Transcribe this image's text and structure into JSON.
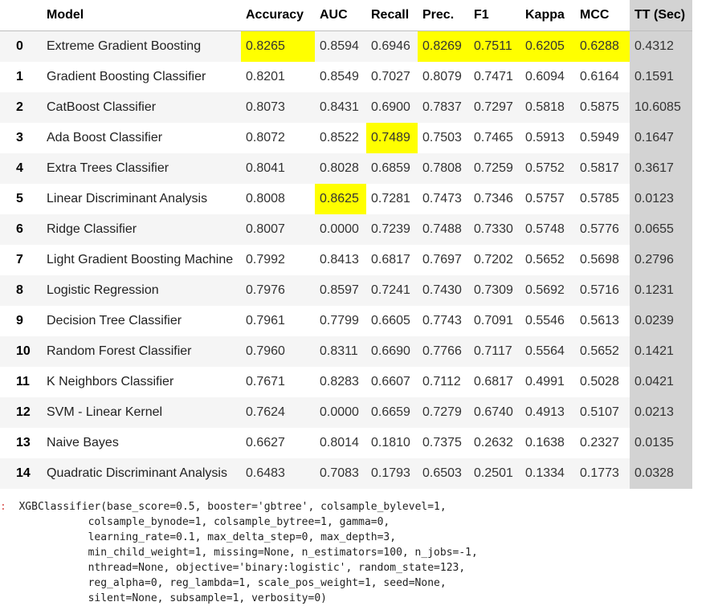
{
  "table": {
    "headers": [
      "",
      "Model",
      "Accuracy",
      "AUC",
      "Recall",
      "Prec.",
      "F1",
      "Kappa",
      "MCC",
      "TT (Sec)"
    ],
    "rows": [
      {
        "idx": "0",
        "model": "Extreme Gradient Boosting",
        "vals": [
          "0.8265",
          "0.8594",
          "0.6946",
          "0.8269",
          "0.7511",
          "0.6205",
          "0.6288",
          "0.4312"
        ],
        "highlight": [
          0,
          3,
          4,
          5,
          6
        ]
      },
      {
        "idx": "1",
        "model": "Gradient Boosting Classifier",
        "vals": [
          "0.8201",
          "0.8549",
          "0.7027",
          "0.8079",
          "0.7471",
          "0.6094",
          "0.6164",
          "0.1591"
        ],
        "highlight": []
      },
      {
        "idx": "2",
        "model": "CatBoost Classifier",
        "vals": [
          "0.8073",
          "0.8431",
          "0.6900",
          "0.7837",
          "0.7297",
          "0.5818",
          "0.5875",
          "10.6085"
        ],
        "highlight": []
      },
      {
        "idx": "3",
        "model": "Ada Boost Classifier",
        "vals": [
          "0.8072",
          "0.8522",
          "0.7489",
          "0.7503",
          "0.7465",
          "0.5913",
          "0.5949",
          "0.1647"
        ],
        "highlight": [
          2
        ]
      },
      {
        "idx": "4",
        "model": "Extra Trees Classifier",
        "vals": [
          "0.8041",
          "0.8028",
          "0.6859",
          "0.7808",
          "0.7259",
          "0.5752",
          "0.5817",
          "0.3617"
        ],
        "highlight": []
      },
      {
        "idx": "5",
        "model": "Linear Discriminant Analysis",
        "vals": [
          "0.8008",
          "0.8625",
          "0.7281",
          "0.7473",
          "0.7346",
          "0.5757",
          "0.5785",
          "0.0123"
        ],
        "highlight": [
          1
        ]
      },
      {
        "idx": "6",
        "model": "Ridge Classifier",
        "vals": [
          "0.8007",
          "0.0000",
          "0.7239",
          "0.7488",
          "0.7330",
          "0.5748",
          "0.5776",
          "0.0655"
        ],
        "highlight": []
      },
      {
        "idx": "7",
        "model": "Light Gradient Boosting Machine",
        "vals": [
          "0.7992",
          "0.8413",
          "0.6817",
          "0.7697",
          "0.7202",
          "0.5652",
          "0.5698",
          "0.2796"
        ],
        "highlight": []
      },
      {
        "idx": "8",
        "model": "Logistic Regression",
        "vals": [
          "0.7976",
          "0.8597",
          "0.7241",
          "0.7430",
          "0.7309",
          "0.5692",
          "0.5716",
          "0.1231"
        ],
        "highlight": []
      },
      {
        "idx": "9",
        "model": "Decision Tree Classifier",
        "vals": [
          "0.7961",
          "0.7799",
          "0.6605",
          "0.7743",
          "0.7091",
          "0.5546",
          "0.5613",
          "0.0239"
        ],
        "highlight": []
      },
      {
        "idx": "10",
        "model": "Random Forest Classifier",
        "vals": [
          "0.7960",
          "0.8311",
          "0.6690",
          "0.7766",
          "0.7117",
          "0.5564",
          "0.5652",
          "0.1421"
        ],
        "highlight": []
      },
      {
        "idx": "11",
        "model": "K Neighbors Classifier",
        "vals": [
          "0.7671",
          "0.8283",
          "0.6607",
          "0.7112",
          "0.6817",
          "0.4991",
          "0.5028",
          "0.0421"
        ],
        "highlight": []
      },
      {
        "idx": "12",
        "model": "SVM - Linear Kernel",
        "vals": [
          "0.7624",
          "0.0000",
          "0.6659",
          "0.7279",
          "0.6740",
          "0.4913",
          "0.5107",
          "0.0213"
        ],
        "highlight": []
      },
      {
        "idx": "13",
        "model": "Naive Bayes",
        "vals": [
          "0.6627",
          "0.8014",
          "0.1810",
          "0.7375",
          "0.2632",
          "0.1638",
          "0.2327",
          "0.0135"
        ],
        "highlight": []
      },
      {
        "idx": "14",
        "model": "Quadratic Discriminant Analysis",
        "vals": [
          "0.6483",
          "0.7083",
          "0.1793",
          "0.6503",
          "0.2501",
          "0.1334",
          "0.1773",
          "0.0328"
        ],
        "highlight": []
      }
    ]
  },
  "output": {
    "prompt": ":",
    "lines": [
      "XGBClassifier(base_score=0.5, booster='gbtree', colsample_bylevel=1,",
      "              colsample_bynode=1, colsample_bytree=1, gamma=0,",
      "              learning_rate=0.1, max_delta_step=0, max_depth=3,",
      "              min_child_weight=1, missing=None, n_estimators=100, n_jobs=-1,",
      "              nthread=None, objective='binary:logistic', random_state=123,",
      "              reg_alpha=0, reg_lambda=1, scale_pos_weight=1, seed=None,",
      "              silent=None, subsample=1, verbosity=0)"
    ]
  },
  "colors": {
    "highlight": "#ffff00",
    "tt_column": "#d3d3d3",
    "stripe": "#f5f5f5"
  }
}
